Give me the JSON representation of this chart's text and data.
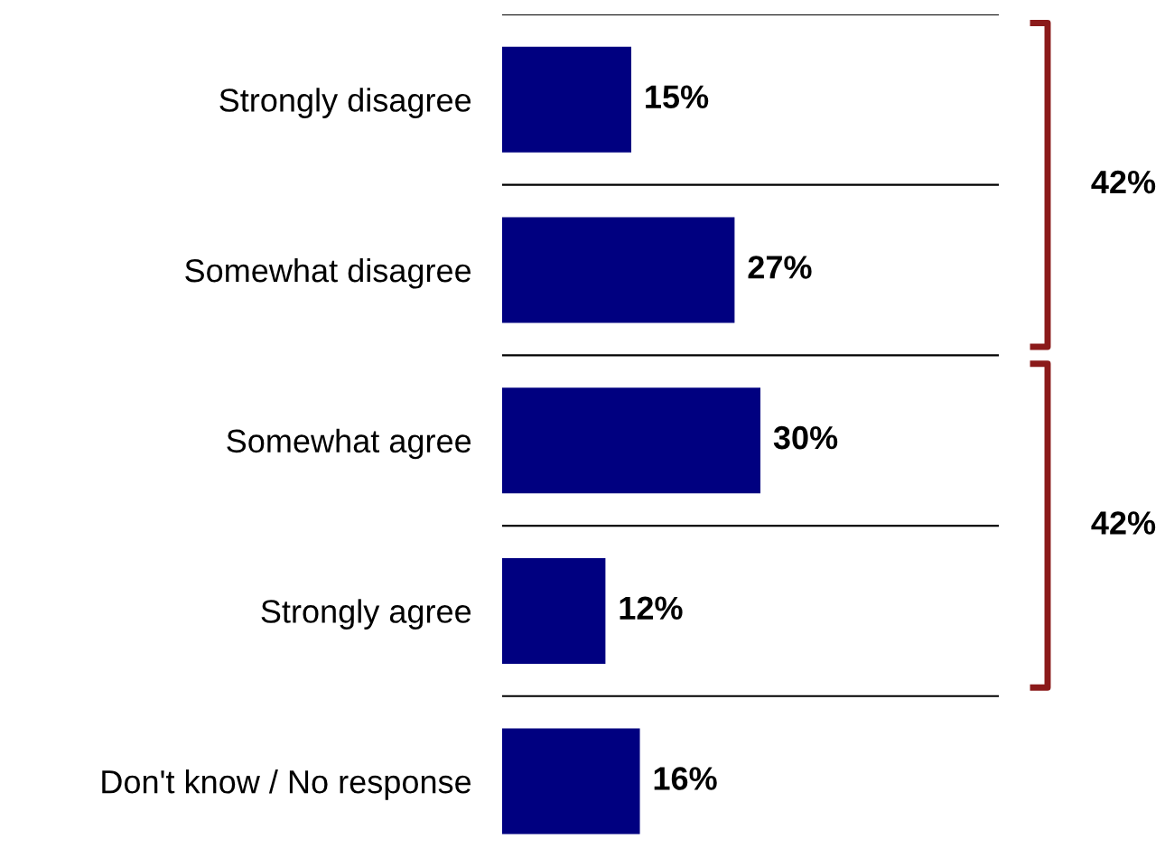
{
  "chart_data": {
    "type": "bar",
    "orientation": "horizontal",
    "categories": [
      "Strongly disagree",
      "Somewhat disagree",
      "Somewhat agree",
      "Strongly agree",
      "Don't know / No response"
    ],
    "values": [
      15,
      27,
      30,
      12,
      16
    ],
    "color": "#000080",
    "value_labels": [
      "15%",
      "27%",
      "30%",
      "12%",
      "16%"
    ],
    "grid": "y",
    "annotations": [
      "42%",
      "42%"
    ]
  }
}
